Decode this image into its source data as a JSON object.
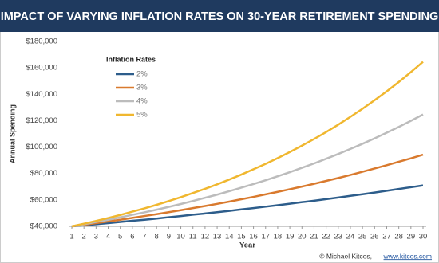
{
  "chart_data": {
    "type": "line",
    "title": "IMPACT OF VARYING INFLATION RATES ON 30-YEAR RETIREMENT SPENDING",
    "x_label": "Year",
    "y_label": "Annual Spending",
    "legend_title": "Inflation Rates",
    "legend_position": "upper left",
    "credit": "© Michael Kitces,",
    "credit_link": "www.kitces.com",
    "grid": false,
    "x": [
      1,
      2,
      3,
      4,
      5,
      6,
      7,
      8,
      9,
      10,
      11,
      12,
      13,
      14,
      15,
      16,
      17,
      18,
      19,
      20,
      21,
      22,
      23,
      24,
      25,
      26,
      27,
      28,
      29,
      30
    ],
    "xlim": [
      1,
      30
    ],
    "xticks": [
      1,
      2,
      3,
      4,
      5,
      6,
      7,
      8,
      9,
      10,
      11,
      12,
      13,
      14,
      15,
      16,
      17,
      18,
      19,
      20,
      21,
      22,
      23,
      24,
      25,
      26,
      27,
      28,
      29,
      30
    ],
    "ylim": [
      40000,
      180000
    ],
    "yticks": [
      {
        "value": 40000,
        "label": "$40,000"
      },
      {
        "value": 60000,
        "label": "$60,000"
      },
      {
        "value": 80000,
        "label": "$80,000"
      },
      {
        "value": 100000,
        "label": "$100,000"
      },
      {
        "value": 120000,
        "label": "$120,000"
      },
      {
        "value": 140000,
        "label": "$140,000"
      },
      {
        "value": 160000,
        "label": "$160,000"
      },
      {
        "value": 180000,
        "label": "$180,000"
      }
    ],
    "series": [
      {
        "name": "2%",
        "color": "#2d5d8b",
        "values": [
          40000,
          40800,
          41600,
          42400,
          43300,
          44200,
          45000,
          45900,
          46900,
          47800,
          48800,
          49700,
          50700,
          51700,
          52800,
          53800,
          54900,
          56000,
          57100,
          58300,
          59400,
          60600,
          61800,
          63100,
          64300,
          65600,
          66900,
          68300,
          69600,
          71000
        ]
      },
      {
        "name": "3%",
        "color": "#d97a2e",
        "values": [
          40000,
          41200,
          42400,
          43700,
          45000,
          46400,
          47800,
          49200,
          50700,
          52200,
          53800,
          55400,
          57000,
          58700,
          60500,
          62300,
          64200,
          66100,
          68100,
          70100,
          72200,
          74400,
          76600,
          78900,
          81300,
          83800,
          86300,
          88900,
          91500,
          94300
        ]
      },
      {
        "name": "4%",
        "color": "#bcbcbc",
        "values": [
          40000,
          41600,
          43300,
          45000,
          46800,
          48700,
          50600,
          52600,
          54700,
          56900,
          59200,
          61600,
          64000,
          66600,
          69300,
          72000,
          74900,
          77900,
          81000,
          84300,
          87600,
          91200,
          94800,
          98600,
          102500,
          106600,
          110900,
          115300,
          119900,
          124700
        ]
      },
      {
        "name": "5%",
        "color": "#f0b72f",
        "values": [
          40000,
          42000,
          44100,
          46300,
          48600,
          51100,
          53600,
          56300,
          59100,
          62100,
          65200,
          68400,
          71800,
          75400,
          79200,
          83200,
          87300,
          91700,
          96300,
          101100,
          106100,
          111400,
          117000,
          122900,
          129000,
          135500,
          142200,
          149300,
          156800,
          164600
        ]
      }
    ]
  }
}
